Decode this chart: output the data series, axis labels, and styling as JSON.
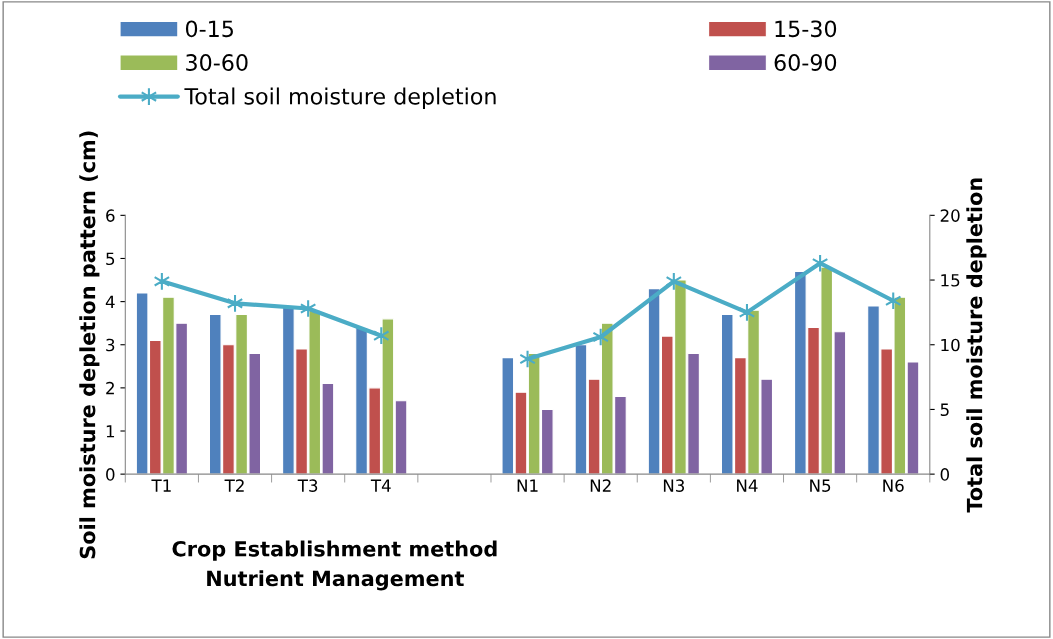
{
  "chart_data": {
    "type": "bar",
    "categories": [
      "T1",
      "T2",
      "T3",
      "T4",
      null,
      "N1",
      "N2",
      "N3",
      "N4",
      "N5",
      "N6"
    ],
    "series": [
      {
        "name": "0-15",
        "color": "#4f81bd",
        "values": [
          4.2,
          3.7,
          3.9,
          3.4,
          null,
          2.7,
          3.0,
          4.3,
          3.7,
          4.7,
          3.9
        ]
      },
      {
        "name": "15-30",
        "color": "#c0504d",
        "values": [
          3.1,
          3.0,
          2.9,
          2.0,
          null,
          1.9,
          2.2,
          3.2,
          2.7,
          3.4,
          2.9
        ]
      },
      {
        "name": "30-60",
        "color": "#9bbb59",
        "values": [
          4.1,
          3.7,
          3.8,
          3.6,
          null,
          2.8,
          3.5,
          4.5,
          3.8,
          4.8,
          4.1
        ]
      },
      {
        "name": "60-90",
        "color": "#8064a2",
        "values": [
          3.5,
          2.8,
          2.1,
          1.7,
          null,
          1.5,
          1.8,
          2.8,
          2.2,
          3.3,
          2.6
        ]
      },
      {
        "name": "Total soil moisture depletion",
        "type": "line",
        "axis": "y2",
        "color": "#4bacc6",
        "marker": "cross",
        "values": [
          14.9,
          13.2,
          12.8,
          10.7,
          null,
          8.9,
          10.6,
          14.9,
          12.5,
          16.3,
          13.4
        ]
      }
    ],
    "ylabel": "Soil moisture depletion pattern (cm)",
    "y2label": "Total soil moisture depletion",
    "xlabel": "Crop Establishment method\nNutrient Management",
    "ylim": [
      0,
      6
    ],
    "yticks": [
      0,
      1,
      2,
      3,
      4,
      5,
      6
    ],
    "y2lim": [
      0,
      20
    ],
    "y2ticks": [
      0,
      5,
      10,
      15,
      20
    ],
    "grid": false,
    "legend": "top left"
  }
}
